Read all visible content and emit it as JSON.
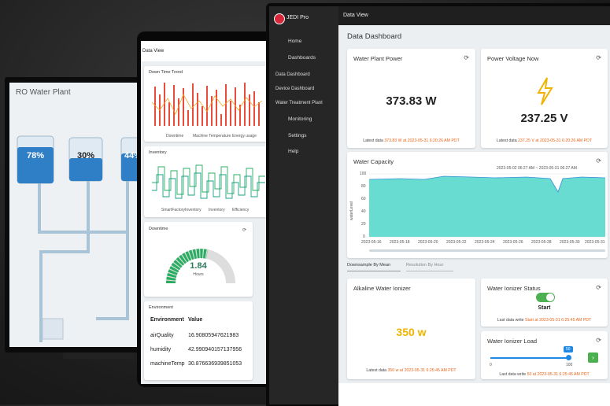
{
  "monitor": {
    "title": "RO Water Plant",
    "tanks": [
      "78%",
      "30%",
      "44%"
    ]
  },
  "tablet": {
    "header": "Data View",
    "down_time_trend": {
      "title": "Down Time Trend",
      "legend": [
        "Downtime",
        "Machine Temperature",
        "Energy usage"
      ]
    },
    "inventory": {
      "title": "Inventory",
      "legend": [
        "SmartFactoryInventory",
        "Inventory",
        "Efficiency"
      ]
    },
    "downtime": {
      "title": "Downtime",
      "value": "1.84",
      "unit": "Hours"
    },
    "environment": {
      "title": "Environment",
      "columns": [
        "Environment",
        "Value"
      ],
      "rows": [
        [
          "airQuality",
          "16.90805947621983"
        ],
        [
          "humidity",
          "42.990940157137956"
        ],
        [
          "machineTemp",
          "30.876636939851053"
        ]
      ]
    }
  },
  "app": {
    "brand": "JEDI Pro",
    "header": "Data View",
    "menu": [
      "Home",
      "Dashboards",
      "Data Dashboard",
      "Device Dashboard",
      "Water Treatment Plant",
      "Monitoring",
      "Settings",
      "Help"
    ],
    "page_title": "Data Dashboard",
    "power": {
      "title": "Water Plant Power",
      "value": "373.83 W",
      "footer_prefix": "Latest data",
      "footer_detail": "373.83 W at 2023-05-31 6:20:26 AM PDT"
    },
    "voltage": {
      "title": "Power Voltage Now",
      "value": "237.25 V",
      "footer_prefix": "Latest data",
      "footer_detail": "237.25 V at 2023-05-31 6:20:26 AM PDT"
    },
    "capacity": {
      "title": "Water Capacity",
      "range": "2023-05-02 06:27 AM ~ 2023-05-31 06:27 AM",
      "y_label": "waterLevel",
      "yticks": [
        "100",
        "80",
        "60",
        "40",
        "20",
        "0"
      ],
      "xticks": [
        "2023-05-16",
        "2023-05-18",
        "2023-05-20",
        "2023-05-22",
        "2023-05-24",
        "2023-05-26",
        "2023-05-28",
        "2023-05-30",
        "2023-05-31"
      ]
    },
    "selects": [
      "Downsample By Mean",
      "Resolution By Hour"
    ],
    "alkaline": {
      "title": "Alkaline Water Ionizer",
      "value": "350 w",
      "footer_prefix": "Latest data",
      "footer_detail": "350 w at 2023-05-31 6:25:45 AM PDT"
    },
    "status": {
      "title": "Water Ionizer Status",
      "state": "Start",
      "footer_prefix": "Last data write",
      "footer_detail": "Start at 2023-05-31 6:25:45 AM PDT"
    },
    "load": {
      "title": "Water Ionizer Load",
      "value": "50",
      "min": "0",
      "max": "100",
      "footer_prefix": "Last data write",
      "footer_detail": "50 at 2023-05-31 6:25:45 AM PDT"
    }
  }
}
